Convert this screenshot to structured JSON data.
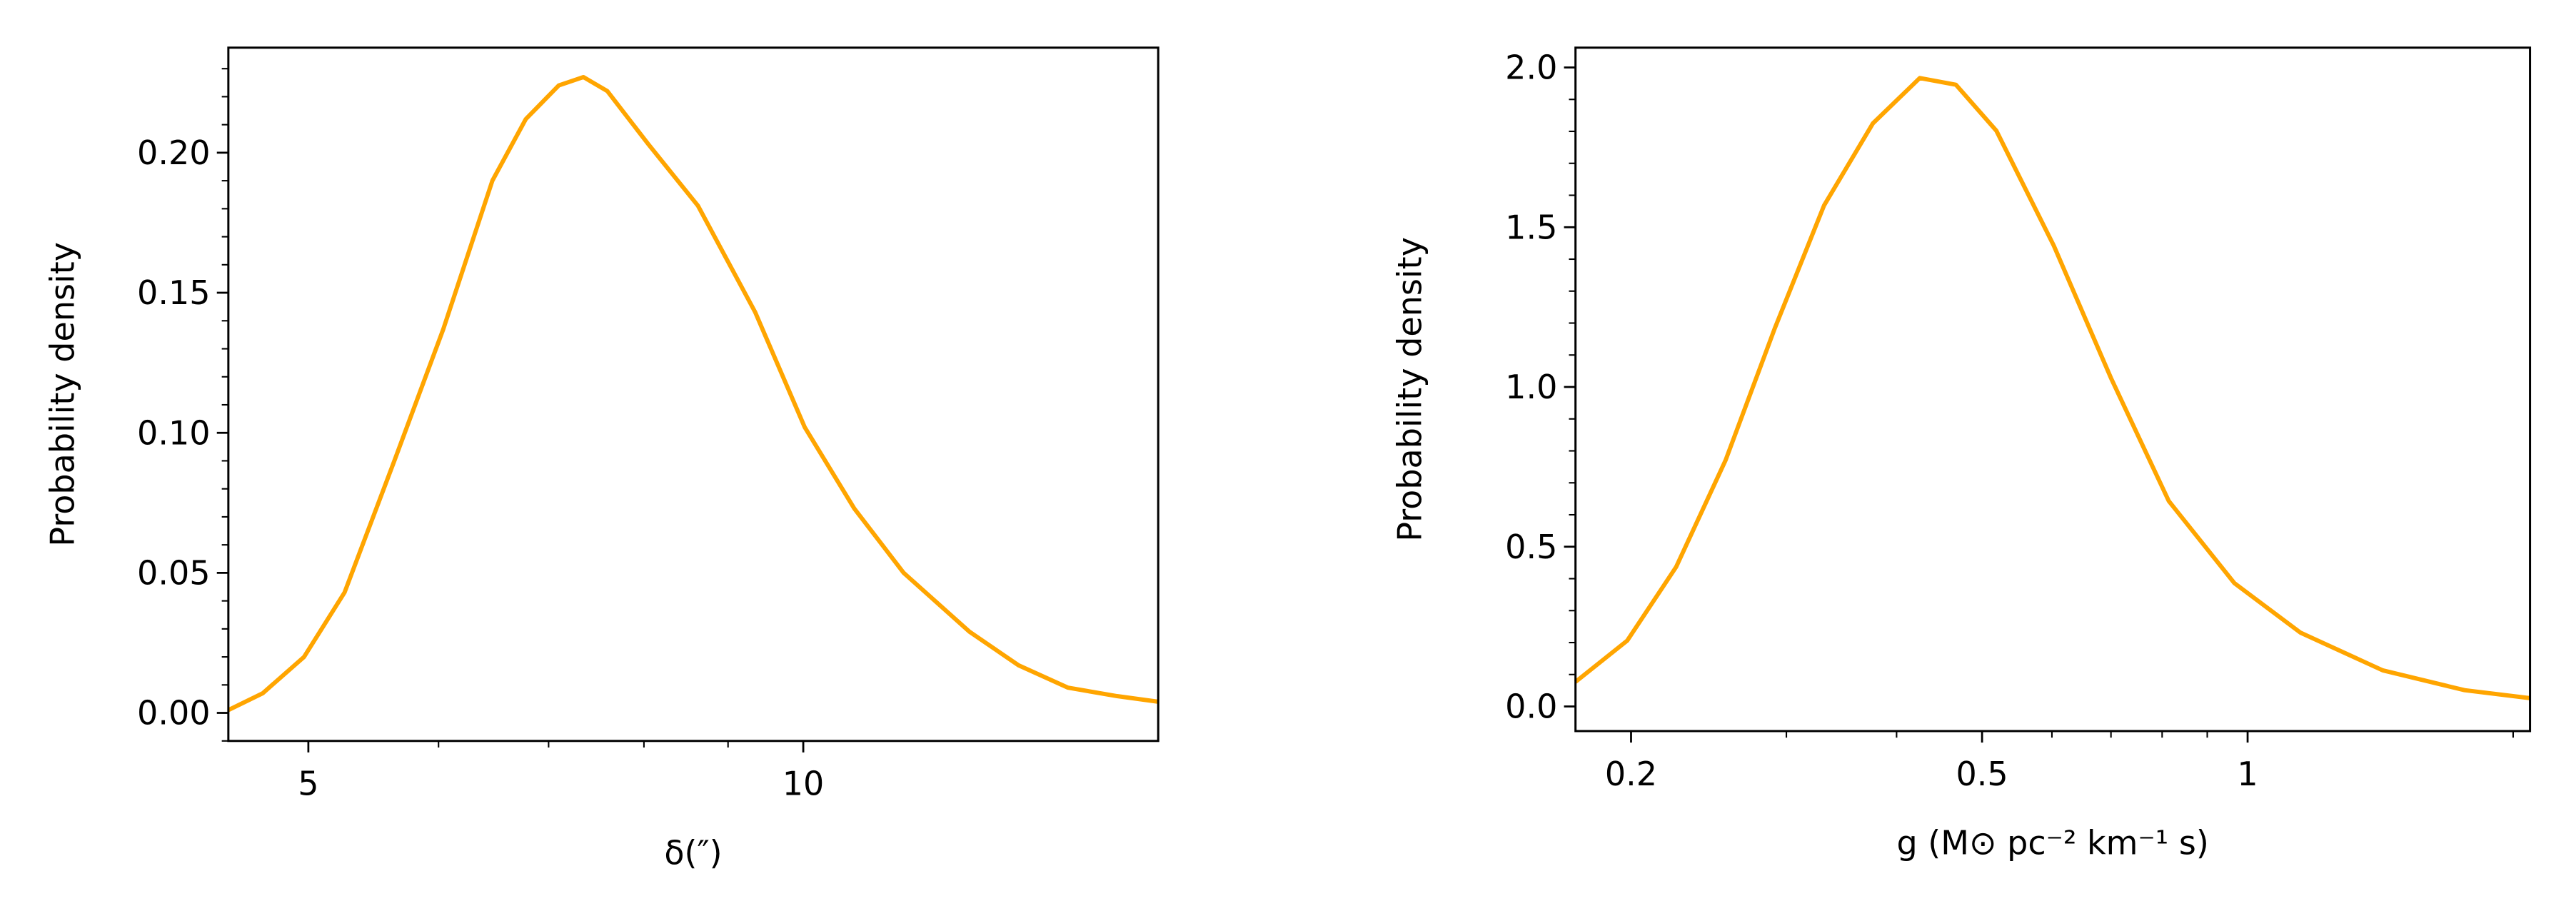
{
  "chart_data": [
    {
      "type": "line",
      "xscale": "log",
      "xlabel": "δ(″)",
      "ylabel": "Probability density",
      "x": [
        4.47,
        4.69,
        4.97,
        5.26,
        5.64,
        6.04,
        6.47,
        6.78,
        7.1,
        7.35,
        7.6,
        8.05,
        8.63,
        9.35,
        10.02,
        10.74,
        11.51,
        12.62,
        13.52,
        14.49,
        15.52,
        16.44
      ],
      "series": [
        {
          "color": "#ffa500",
          "values": [
            0.001,
            0.007,
            0.02,
            0.043,
            0.09,
            0.137,
            0.19,
            0.212,
            0.224,
            0.227,
            0.222,
            0.203,
            0.181,
            0.143,
            0.102,
            0.073,
            0.05,
            0.029,
            0.017,
            0.009,
            0.006,
            0.004
          ]
        }
      ],
      "xlim": [
        4.47,
        16.44
      ],
      "xticks": [
        5,
        10
      ],
      "ylim": [
        -0.01,
        0.2375
      ],
      "yticks": [
        {
          "value": 0,
          "label": "0.00"
        },
        0.05,
        {
          "value": 0.1,
          "label": "0.10"
        },
        0.15,
        {
          "value": 0.2,
          "label": "0.20"
        }
      ]
    },
    {
      "type": "line",
      "xscale": "log",
      "xlabel": "g (M⊙ pc⁻² km⁻¹ s)",
      "ylabel": "Probability density",
      "x": [
        0.173,
        0.198,
        0.225,
        0.256,
        0.291,
        0.331,
        0.376,
        0.425,
        0.467,
        0.519,
        0.603,
        0.7,
        0.814,
        0.966,
        1.148,
        1.423,
        1.762,
        2.09
      ],
      "series": [
        {
          "color": "#ffa500",
          "values": [
            0.077,
            0.206,
            0.437,
            0.771,
            1.183,
            1.568,
            1.825,
            1.967,
            1.946,
            1.802,
            1.442,
            1.028,
            0.643,
            0.386,
            0.231,
            0.113,
            0.051,
            0.026
          ]
        }
      ],
      "xlim": [
        0.173,
        2.09
      ],
      "xticks": [
        0.2,
        0.5,
        1
      ],
      "ylim": [
        -0.077,
        2.062
      ],
      "yticks": [
        {
          "value": 0,
          "label": "0.0"
        },
        0.5,
        {
          "value": 1,
          "label": "1.0"
        },
        1.5,
        {
          "value": 2,
          "label": "2.0"
        }
      ]
    }
  ]
}
